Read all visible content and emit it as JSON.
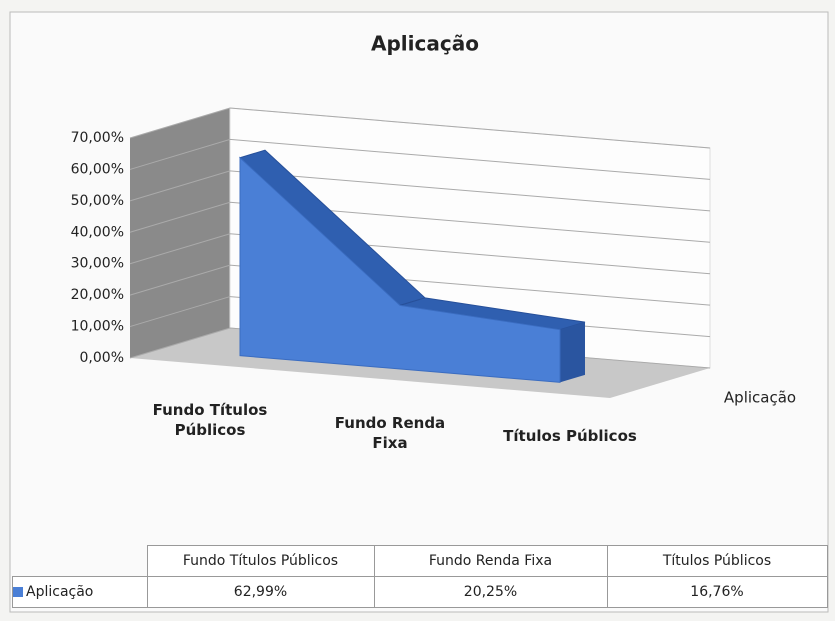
{
  "chart_data": {
    "type": "area3d",
    "title": "Aplicação",
    "categories": [
      "Fundo Títulos Públicos",
      "Fundo Renda Fixa",
      "Títulos Públicos"
    ],
    "series": [
      {
        "name": "Aplicação",
        "color": "#4a7fd6",
        "values": [
          62.99,
          20.25,
          16.76
        ],
        "value_labels": [
          "62,99%",
          "20,25%",
          "16,76%"
        ]
      }
    ],
    "ylim": [
      0,
      70
    ],
    "yticks": [
      {
        "value": 0,
        "label": "0,00%"
      },
      {
        "value": 10,
        "label": "10,00%"
      },
      {
        "value": 20,
        "label": "20,00%"
      },
      {
        "value": 30,
        "label": "30,00%"
      },
      {
        "value": 40,
        "label": "40,00%"
      },
      {
        "value": 50,
        "label": "50,00%"
      },
      {
        "value": 60,
        "label": "60,00%"
      },
      {
        "value": 70,
        "label": "70,00%"
      }
    ],
    "grid": true,
    "data_table": true
  }
}
